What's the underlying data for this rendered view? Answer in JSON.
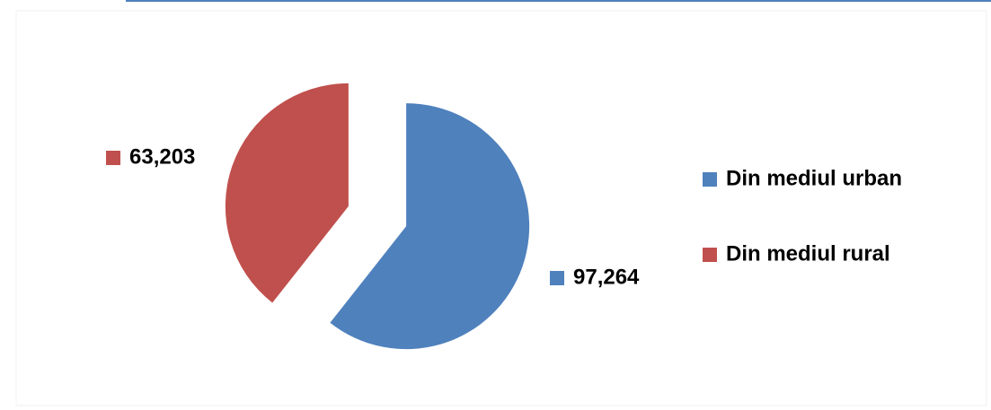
{
  "chart_data": {
    "type": "pie",
    "categories": [
      "Din mediul urban",
      "Din mediul rural"
    ],
    "values": [
      97264,
      63203
    ],
    "value_labels": [
      "97,264",
      "63,203"
    ],
    "colors": [
      "#4f81bd",
      "#c0504d"
    ],
    "exploded": true,
    "legend": "right"
  }
}
